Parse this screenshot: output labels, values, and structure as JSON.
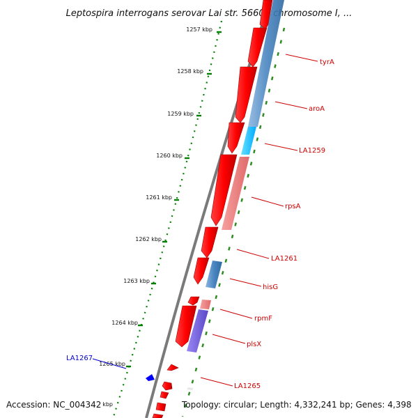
{
  "title": "Leptospira interrogans serovar Lai str. 56601 chromosome I, ...",
  "accession": "Accession: NC_004342",
  "topology": "Topology: circular; Length: 4,332,241 bp; Genes: 4,398",
  "ticks": [
    "1257 kbp",
    "1258 kbp",
    "1259 kbp",
    "1260 kbp",
    "1261 kbp",
    "1262 kbp",
    "1263 kbp",
    "1264 kbp",
    "1265 kbp",
    "kbp"
  ],
  "gene_labels": [
    {
      "name": "tyrA",
      "color": "#cc0000",
      "track": "red"
    },
    {
      "name": "aroA",
      "color": "#cc0000",
      "track": "red"
    },
    {
      "name": "LA1259",
      "color": "#cc0000",
      "track": "red"
    },
    {
      "name": "rpsA",
      "color": "#cc0000",
      "track": "red"
    },
    {
      "name": "LA1261",
      "color": "#cc0000",
      "track": "red"
    },
    {
      "name": "hisG",
      "color": "#cc0000",
      "track": "red"
    },
    {
      "name": "rpmF",
      "color": "#cc0000",
      "track": "red"
    },
    {
      "name": "plsX",
      "color": "#cc0000",
      "track": "red"
    },
    {
      "name": "LA1265",
      "color": "#cc0000",
      "track": "red"
    },
    {
      "name": "LA1267",
      "color": "#0000cc",
      "track": "blue"
    }
  ],
  "colors": {
    "forward_gene": "#ff0000",
    "reverse_gene": "#0000ff",
    "backbone": "#7a7a7a",
    "tick_marks": "#008000",
    "cog_steelblue": "#4a86c0",
    "cog_cyan": "#00c8ff",
    "cog_pink": "#f08080",
    "cog_purple": "#7b68ee"
  }
}
